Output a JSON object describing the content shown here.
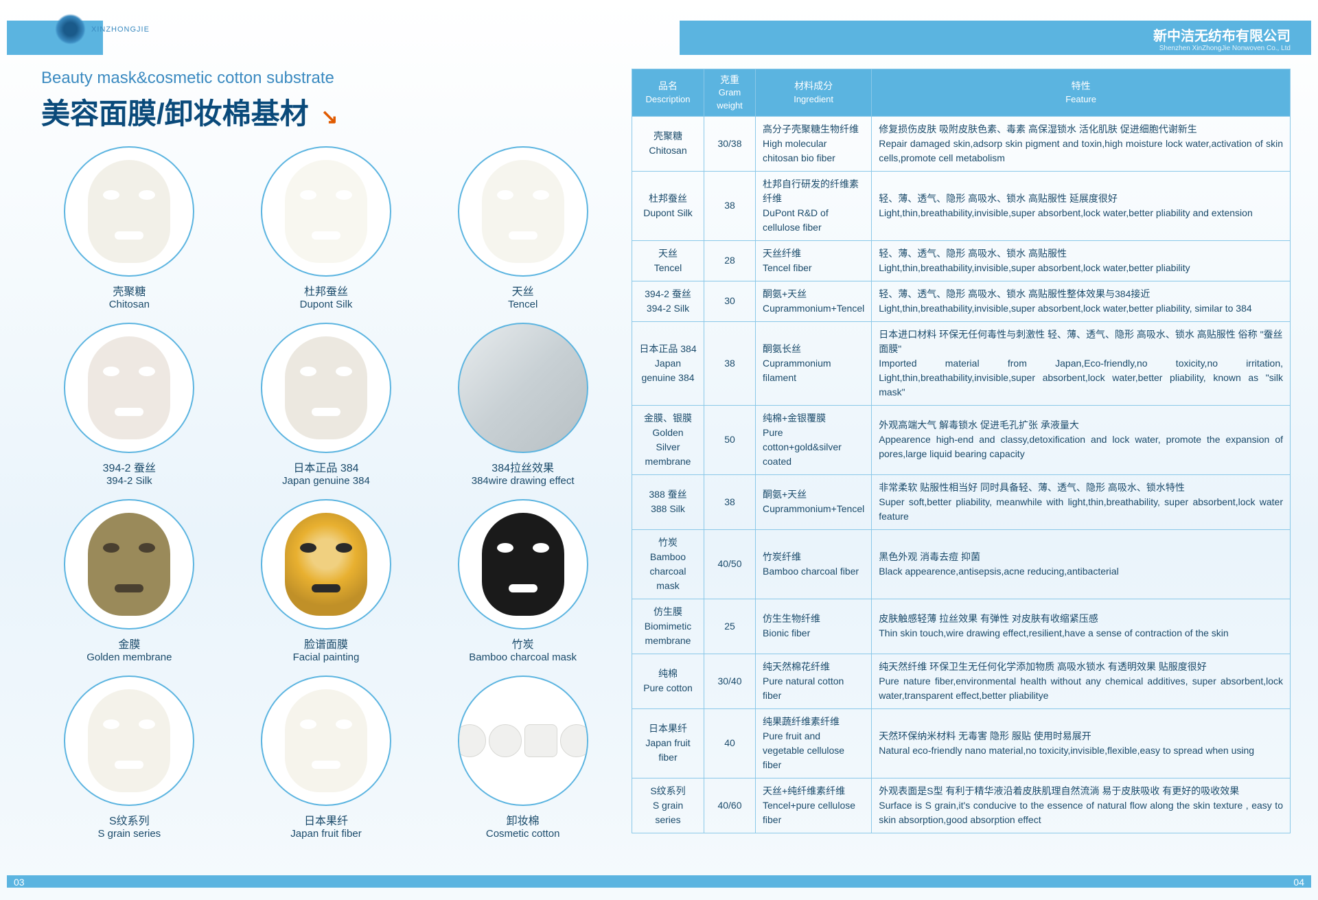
{
  "company": {
    "cn": "新中洁无纺布有限公司",
    "en": "Shenzhen XinZhongJie Nonwoven Co., Ltd",
    "brand": "XINZHONGJIE"
  },
  "subtitle_en": "Beauty mask&cosmetic cotton substrate",
  "title_cn": "美容面膜/卸妆棉基材",
  "arrow": "↘",
  "page_left": "03",
  "page_right": "04",
  "masks": [
    {
      "cn": "壳聚糖",
      "en": "Chitosan",
      "bg": "#f2f0e8",
      "hole": "#ffffff"
    },
    {
      "cn": "杜邦蚕丝",
      "en": "Dupont Silk",
      "bg": "#f8f7f0",
      "hole": "#ffffff"
    },
    {
      "cn": "天丝",
      "en": "Tencel",
      "bg": "#f6f5ee",
      "hole": "#ffffff"
    },
    {
      "cn": "394-2 蚕丝",
      "en": "394-2 Silk",
      "bg": "#eee8e2",
      "hole": "#ffffff"
    },
    {
      "cn": "日本正品 384",
      "en": "Japan genuine 384",
      "bg": "#ece8e0",
      "hole": "#ffffff"
    },
    {
      "cn": "384拉丝效果",
      "en": "384wire drawing effect",
      "bg": "#d8dde0",
      "hole": "#c0c6ca",
      "special": "wire"
    },
    {
      "cn": "金膜",
      "en": "Golden membrane",
      "bg": "#9a8a5a",
      "hole": "#4a4030"
    },
    {
      "cn": "脸谱面膜",
      "en": "Facial painting",
      "bg": "#e8b030",
      "hole": "#2a2a2a",
      "special": "paint"
    },
    {
      "cn": "竹炭",
      "en": "Bamboo charcoal mask",
      "bg": "#1a1a1a",
      "hole": "#ffffff"
    },
    {
      "cn": "S纹系列",
      "en": "S grain series",
      "bg": "#f4f2ea",
      "hole": "#ffffff"
    },
    {
      "cn": "日本果纤",
      "en": "Japan fruit fiber",
      "bg": "#f6f4ec",
      "hole": "#ffffff"
    },
    {
      "cn": "卸妆棉",
      "en": "Cosmetic cotton",
      "special": "cotton"
    }
  ],
  "table": {
    "headers": [
      {
        "cn": "品名",
        "en": "Description"
      },
      {
        "cn": "克重",
        "en": "Gram weight"
      },
      {
        "cn": "材料成分",
        "en": "Ingredient"
      },
      {
        "cn": "特性",
        "en": "Feature"
      }
    ],
    "rows": [
      {
        "desc_cn": "壳聚糖",
        "desc_en": "Chitosan",
        "gram": "30/38",
        "ing_cn": "高分子壳聚糖生物纤维",
        "ing_en": "High molecular chitosan bio fiber",
        "feat_cn": "修复损伤皮肤 吸附皮肤色素、毒素 高保湿锁水 活化肌肤 促进细胞代谢新生",
        "feat_en": "Repair damaged skin,adsorp skin pigment and toxin,high moisture lock water,activation of skin cells,promote cell metabolism"
      },
      {
        "desc_cn": "杜邦蚕丝",
        "desc_en": "Dupont Silk",
        "gram": "38",
        "ing_cn": "杜邦自行研发的纤维素纤维",
        "ing_en": "DuPont R&D of cellulose fiber",
        "feat_cn": "轻、薄、透气、隐形 高吸水、锁水 高贴服性 延展度很好",
        "feat_en": "Light,thin,breathability,invisible,super absorbent,lock water,better pliability and extension"
      },
      {
        "desc_cn": "天丝",
        "desc_en": "Tencel",
        "gram": "28",
        "ing_cn": "天丝纤维",
        "ing_en": "Tencel fiber",
        "feat_cn": "轻、薄、透气、隐形 高吸水、锁水 高贴服性",
        "feat_en": "Light,thin,breathability,invisible,super absorbent,lock water,better pliability"
      },
      {
        "desc_cn": "394-2 蚕丝",
        "desc_en": "394-2 Silk",
        "gram": "30",
        "ing_cn": "酮氨+天丝",
        "ing_en": "Cuprammonium+Tencel",
        "feat_cn": "轻、薄、透气、隐形 高吸水、锁水 高贴服性整体效果与384接近",
        "feat_en": "Light,thin,breathability,invisible,super absorbent,lock water,better pliability, similar to 384"
      },
      {
        "desc_cn": "日本正品 384",
        "desc_en": "Japan genuine 384",
        "gram": "38",
        "ing_cn": "酮氨长丝",
        "ing_en": "Cuprammonium filament",
        "feat_cn": "日本进口材料 环保无任何毒性与刺激性 轻、薄、透气、隐形 高吸水、锁水 高贴服性 俗称 \"蚕丝面膜\"",
        "feat_en": "Imported material from Japan,Eco-friendly,no toxicity,no irritation, Light,thin,breathability,invisible,super absorbent,lock water,better pliability, known as \"silk mask\""
      },
      {
        "desc_cn": "金膜、银膜",
        "desc_en": "Golden Silver membrane",
        "gram": "50",
        "ing_cn": "纯棉+金银覆膜",
        "ing_en": "Pure cotton+gold&silver coated",
        "feat_cn": "外观高端大气 解毒锁水 促进毛孔扩张 承液量大",
        "feat_en": "Appearence high-end and classy,detoxification and lock water, promote the expansion of pores,large liquid bearing capacity"
      },
      {
        "desc_cn": "388 蚕丝",
        "desc_en": "388 Silk",
        "gram": "38",
        "ing_cn": "酮氨+天丝",
        "ing_en": "Cuprammonium+Tencel",
        "feat_cn": "非常柔软 贴服性相当好 同时具备轻、薄、透气、隐形 高吸水、锁水特性",
        "feat_en": "Super soft,better pliability, meanwhile with light,thin,breathability, super absorbent,lock water feature"
      },
      {
        "desc_cn": "竹炭",
        "desc_en": "Bamboo charcoal mask",
        "gram": "40/50",
        "ing_cn": "竹炭纤维",
        "ing_en": "Bamboo charcoal fiber",
        "feat_cn": "黑色外观 消毒去痘 抑菌",
        "feat_en": "Black appearence,antisepsis,acne reducing,antibacterial"
      },
      {
        "desc_cn": "仿生膜",
        "desc_en": "Biomimetic membrane",
        "gram": "25",
        "ing_cn": "仿生生物纤维",
        "ing_en": "Bionic fiber",
        "feat_cn": "皮肤触感轻薄 拉丝效果 有弹性 对皮肤有收缩紧压感",
        "feat_en": "Thin skin touch,wire drawing effect,resilient,have a sense of contraction of the skin"
      },
      {
        "desc_cn": "纯棉",
        "desc_en": "Pure cotton",
        "gram": "30/40",
        "ing_cn": "纯天然棉花纤维",
        "ing_en": "Pure natural cotton fiber",
        "feat_cn": "纯天然纤维 环保卫生无任何化学添加物质 高吸水锁水 有透明效果 贴服度很好",
        "feat_en": "Pure nature fiber,environmental health without any chemical additives, super absorbent,lock water,transparent effect,better pliabilitye"
      },
      {
        "desc_cn": "日本果纤",
        "desc_en": "Japan fruit fiber",
        "gram": "40",
        "ing_cn": "纯果蔬纤维素纤维",
        "ing_en": "Pure fruit and vegetable cellulose fiber",
        "feat_cn": "天然环保纳米材料 无毒害 隐形 服贴 使用时易展开",
        "feat_en": "Natural eco-friendly nano material,no toxicity,invisible,flexible,easy to spread when using"
      },
      {
        "desc_cn": "S纹系列",
        "desc_en": "S grain series",
        "gram": "40/60",
        "ing_cn": "天丝+纯纤维素纤维",
        "ing_en": "Tencel+pure cellulose fiber",
        "feat_cn": "外观表面是S型 有利于精华液沿着皮肤肌理自然流淌 易于皮肤吸收 有更好的吸收效果",
        "feat_en": "Surface is S grain,it's conducive to the essence of natural flow along the skin texture , easy to skin absorption,good absorption effect"
      }
    ]
  }
}
